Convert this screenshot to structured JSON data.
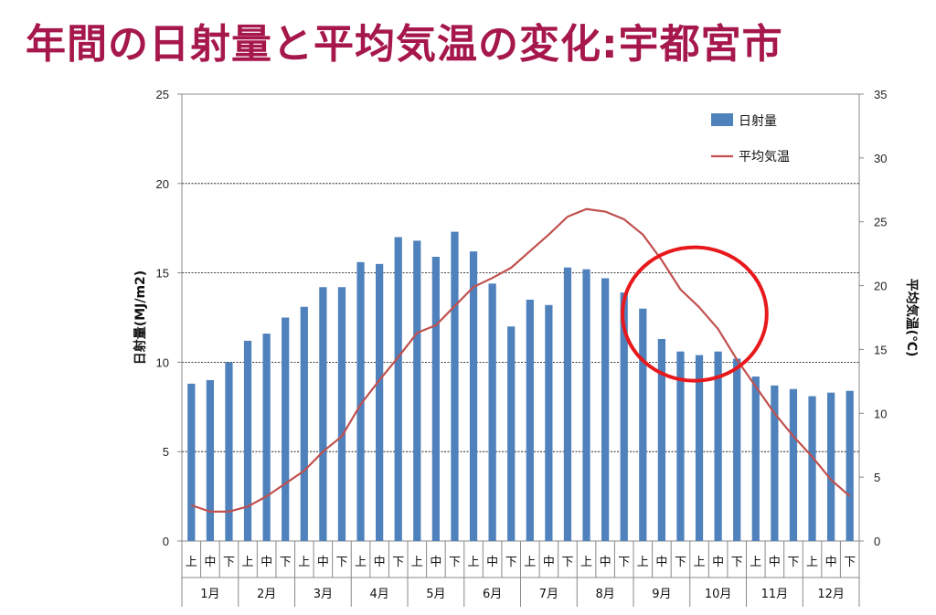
{
  "page": {
    "title": "年間の日射量と平均気温の変化:宇都宮市"
  },
  "chart_data": {
    "type": "bar+line",
    "title": "",
    "categories": [
      "上",
      "中",
      "下",
      "上",
      "中",
      "下",
      "上",
      "中",
      "下",
      "上",
      "中",
      "下",
      "上",
      "中",
      "下",
      "上",
      "中",
      "下",
      "上",
      "中",
      "下",
      "上",
      "中",
      "下",
      "上",
      "中",
      "下",
      "上",
      "中",
      "下",
      "上",
      "中",
      "下",
      "上",
      "中",
      "下"
    ],
    "months": [
      "1月",
      "2月",
      "3月",
      "4月",
      "5月",
      "6月",
      "7月",
      "8月",
      "9月",
      "10月",
      "11月",
      "12月"
    ],
    "series": [
      {
        "name": "日射量",
        "type": "bar",
        "axis": "left",
        "color": "#4f81bd",
        "values": [
          8.8,
          9.0,
          10.0,
          11.2,
          11.6,
          12.5,
          13.1,
          14.2,
          14.2,
          15.6,
          15.5,
          17.0,
          16.8,
          15.9,
          17.3,
          16.2,
          14.4,
          12.0,
          13.5,
          13.2,
          15.3,
          15.2,
          14.7,
          13.9,
          13.0,
          11.3,
          10.6,
          10.4,
          10.6,
          10.2,
          9.2,
          8.7,
          8.5,
          8.1,
          8.3,
          8.4
        ]
      },
      {
        "name": "平均気温",
        "type": "line",
        "axis": "right",
        "color": "#c0504d",
        "values": [
          2.8,
          2.3,
          2.3,
          2.7,
          3.5,
          4.5,
          5.5,
          7.0,
          8.2,
          10.7,
          12.6,
          14.4,
          16.3,
          16.9,
          18.4,
          19.9,
          20.6,
          21.4,
          22.7,
          24.0,
          25.4,
          26.0,
          25.8,
          25.2,
          24.0,
          22.0,
          19.7,
          18.3,
          16.6,
          14.2,
          12.1,
          10.0,
          8.2,
          6.6,
          4.8,
          3.5
        ]
      }
    ],
    "ylabel": "日射量(MJ/m2)",
    "ylim": [
      0,
      25
    ],
    "yticks": [
      "0",
      "5",
      "10",
      "15",
      "20",
      "25"
    ],
    "y2label": "平均気温(℃)",
    "y2lim": [
      0,
      35
    ],
    "y2ticks": [
      "0",
      "5",
      "10",
      "15",
      "20",
      "25",
      "30",
      "35"
    ],
    "grid": true,
    "legend": "top-right",
    "annotations": [
      {
        "type": "ellipse",
        "color": "#e8191c",
        "around": "9月上 - 10月下"
      }
    ]
  }
}
